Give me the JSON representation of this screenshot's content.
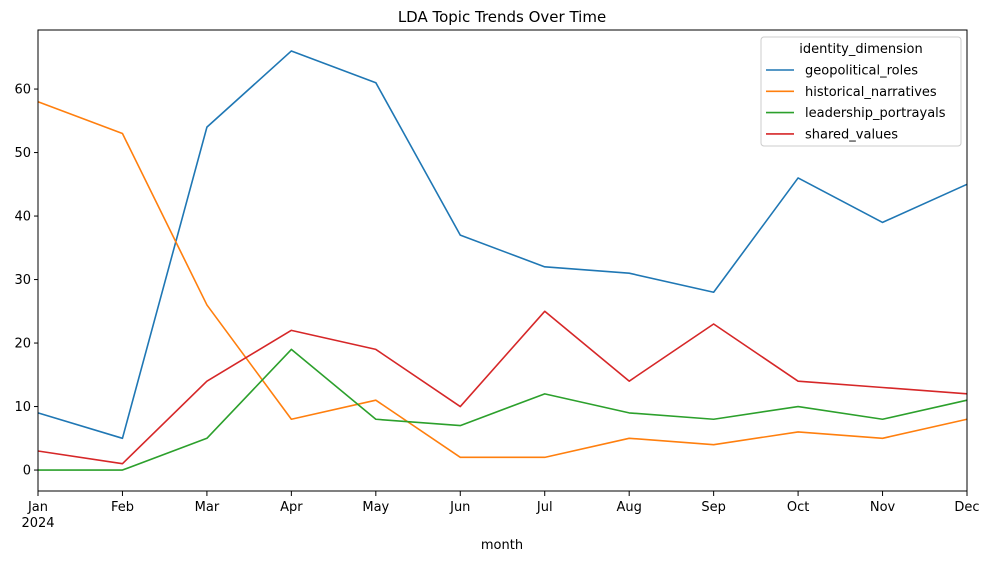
{
  "chart_data": {
    "type": "line",
    "title": "LDA Topic Trends Over Time",
    "xlabel": "month",
    "ylabel": "",
    "x": [
      "Jan",
      "Feb",
      "Mar",
      "Apr",
      "May",
      "Jun",
      "Jul",
      "Aug",
      "Sep",
      "Oct",
      "Nov",
      "Dec"
    ],
    "x_year_label": "2024",
    "ylim": [
      -3.3,
      69.3
    ],
    "yticks": [
      0,
      10,
      20,
      30,
      40,
      50,
      60
    ],
    "grid": false,
    "legend_title": "identity_dimension",
    "legend_position": "upper right",
    "series": [
      {
        "name": "geopolitical_roles",
        "color": "#1f77b4",
        "values": [
          9,
          5,
          54,
          66,
          61,
          37,
          32,
          31,
          28,
          46,
          39,
          45
        ]
      },
      {
        "name": "historical_narratives",
        "color": "#ff7f0e",
        "values": [
          58,
          53,
          26,
          8,
          11,
          2,
          2,
          5,
          4,
          6,
          5,
          8
        ]
      },
      {
        "name": "leadership_portrayals",
        "color": "#2ca02c",
        "values": [
          0,
          0,
          5,
          19,
          8,
          7,
          12,
          9,
          8,
          10,
          8,
          11
        ]
      },
      {
        "name": "shared_values",
        "color": "#d62728",
        "values": [
          3,
          1,
          14,
          22,
          19,
          10,
          25,
          14,
          23,
          14,
          13,
          12
        ]
      }
    ]
  }
}
